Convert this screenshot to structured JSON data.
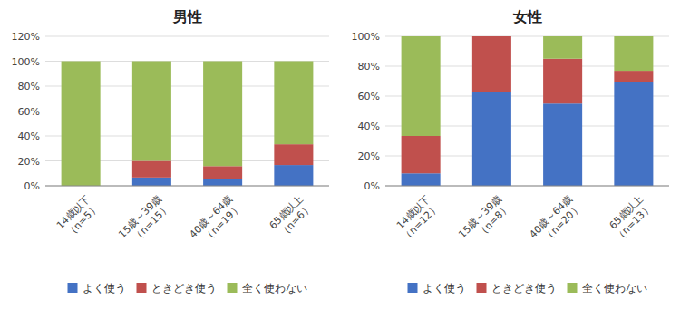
{
  "chart_data": [
    {
      "type": "bar",
      "stacked": true,
      "grid": true,
      "legend": "bottom",
      "title": "男性",
      "categories": [
        "14歳以下\n（n=5）",
        "15歳～39歳\n（n=15）",
        "40歳～64歳\n（n=19）",
        "65歳以上\n（n=6）"
      ],
      "series": [
        {
          "name": "よく使う",
          "color": "#4472c4",
          "values": [
            0.0,
            0.0667,
            0.0526,
            0.1667
          ]
        },
        {
          "name": "ときどき使う",
          "color": "#c0504d",
          "values": [
            0.0,
            0.1333,
            0.1053,
            0.1667
          ]
        },
        {
          "name": "全く使わない",
          "color": "#9bbb59",
          "values": [
            1.0,
            0.8,
            0.8421,
            0.6667
          ]
        }
      ],
      "ylim": [
        0,
        1.2
      ],
      "yticks": [
        {
          "value": 0.0,
          "label": "0%"
        },
        {
          "value": 0.2,
          "label": "20%"
        },
        {
          "value": 0.4,
          "label": "40%"
        },
        {
          "value": 0.6,
          "label": "60%"
        },
        {
          "value": 0.8,
          "label": "80%"
        },
        {
          "value": 1.0,
          "label": "100%"
        },
        {
          "value": 1.2,
          "label": "120%"
        }
      ]
    },
    {
      "type": "bar",
      "stacked": true,
      "grid": true,
      "legend": "bottom",
      "title": "女性",
      "categories": [
        "14歳以下\n（n=12）",
        "15歳～39歳\n（n=8）",
        "40歳～64歳\n（n=20）",
        "65歳以上\n（n=13）"
      ],
      "series": [
        {
          "name": "よく使う",
          "color": "#4472c4",
          "values": [
            0.0833,
            0.625,
            0.55,
            0.6923
          ]
        },
        {
          "name": "ときどき使う",
          "color": "#c0504d",
          "values": [
            0.25,
            0.375,
            0.3,
            0.0769
          ]
        },
        {
          "name": "全く使わない",
          "color": "#9bbb59",
          "values": [
            0.6667,
            0.0,
            0.15,
            0.2308
          ]
        }
      ],
      "ylim": [
        0,
        1.0
      ],
      "yticks": [
        {
          "value": 0.0,
          "label": "0%"
        },
        {
          "value": 0.2,
          "label": "20%"
        },
        {
          "value": 0.4,
          "label": "40%"
        },
        {
          "value": 0.6,
          "label": "60%"
        },
        {
          "value": 0.8,
          "label": "80%"
        },
        {
          "value": 1.0,
          "label": "100%"
        }
      ]
    }
  ]
}
